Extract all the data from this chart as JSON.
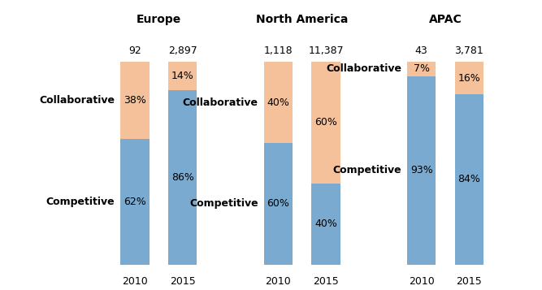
{
  "regions": [
    "Europe",
    "North America",
    "APAC"
  ],
  "years": [
    "2010",
    "2015"
  ],
  "totals": {
    "Europe": [
      "92",
      "2,897"
    ],
    "North America": [
      "1,118",
      "11,387"
    ],
    "APAC": [
      "43",
      "3,781"
    ]
  },
  "competitive_pct": {
    "Europe": [
      62,
      86
    ],
    "North America": [
      60,
      40
    ],
    "APAC": [
      93,
      84
    ]
  },
  "collaborative_pct": {
    "Europe": [
      38,
      14
    ],
    "North America": [
      40,
      60
    ],
    "APAC": [
      7,
      16
    ]
  },
  "color_competitive": "#7aaacf",
  "color_collaborative": "#f5c19a",
  "bar_width": 0.6,
  "font_size_region": 10,
  "font_size_labels": 9,
  "font_size_pct": 9,
  "font_size_totals": 9
}
